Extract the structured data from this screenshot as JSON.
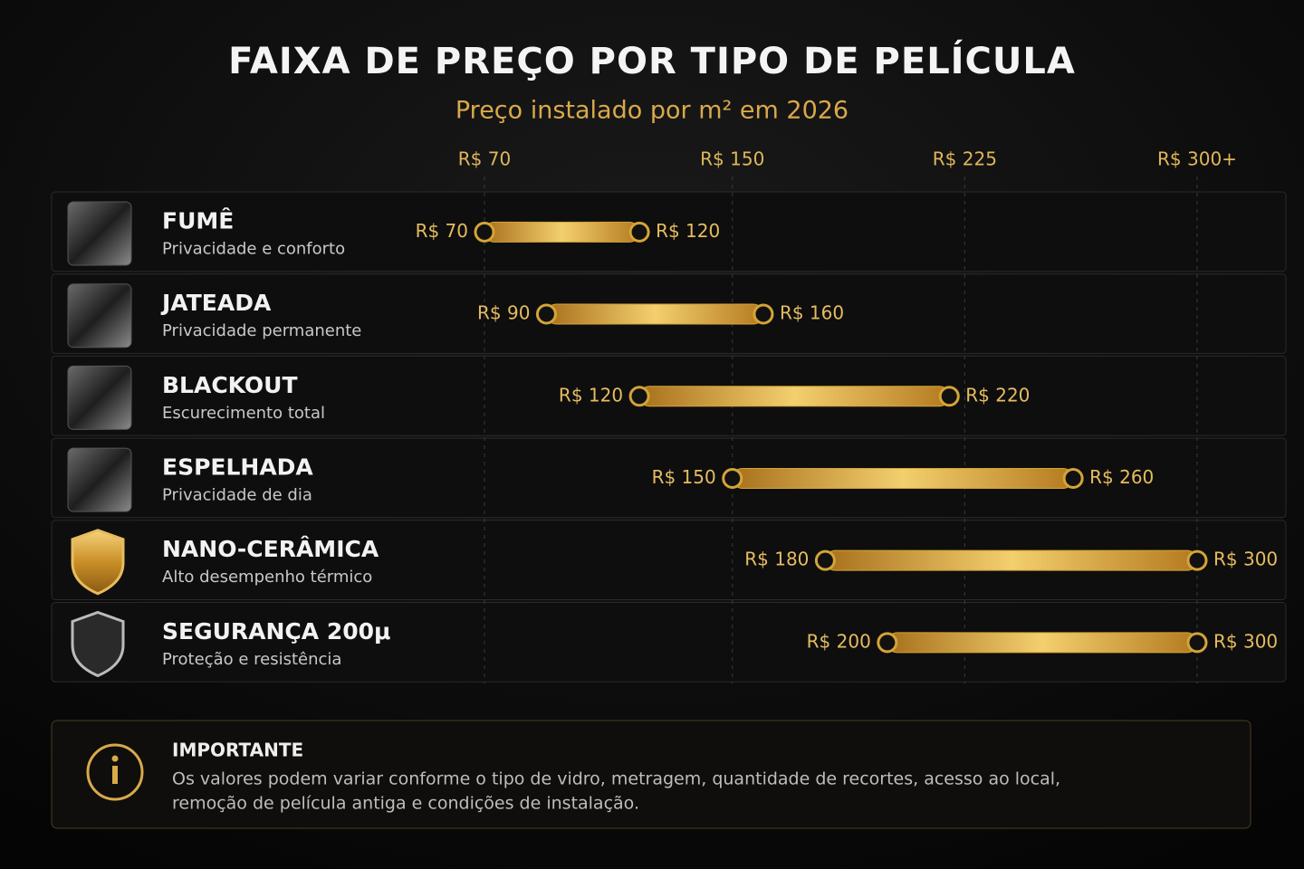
{
  "chart_data": {
    "type": "range",
    "title": "FAIXA DE PREÇO POR TIPO DE PELÍCULA",
    "subtitle": "Preço instalado por m² em 2026",
    "categories": [
      "FUMÊ",
      "JATEADA",
      "BLACKOUT",
      "ESPELHADA",
      "NANO-CERÂMICA",
      "SEGURANÇA 200μ"
    ],
    "descriptions": [
      "Privacidade e conforto",
      "Privacidade permanente",
      "Escurecimento total",
      "Privacidade de dia",
      "Alto desempenho térmico",
      "Proteção e resistência"
    ],
    "low": {
      "values": [
        70,
        90,
        120,
        150,
        180,
        200
      ],
      "value_labels": [
        "R$ 70",
        "R$ 90",
        "R$ 120",
        "R$ 150",
        "R$ 180",
        "R$ 200"
      ]
    },
    "high": {
      "values": [
        120,
        160,
        220,
        260,
        300,
        300
      ],
      "value_labels": [
        "R$ 120",
        "R$ 160",
        "R$ 220",
        "R$ 260",
        "R$ 300",
        "R$ 300"
      ]
    },
    "color": "#d4a437",
    "xlim": [
      70,
      300
    ],
    "xticks": [
      {
        "value": 70,
        "label": "R$ 70"
      },
      {
        "value": 150,
        "label": "R$ 150"
      },
      {
        "value": 225,
        "label": "R$ 225"
      },
      {
        "value": 300,
        "label": "R$ 300+"
      }
    ],
    "grid": true
  },
  "note": {
    "title": "IMPORTANTE",
    "lines": [
      "Os valores podem variar conforme o tipo de vidro, metragem, quantidade de recortes, acesso ao local,",
      "remoção de película antiga e condições de instalação."
    ]
  }
}
